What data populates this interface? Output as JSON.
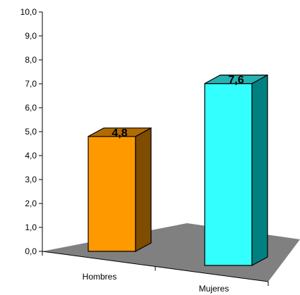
{
  "chart_data": {
    "type": "bar",
    "categories": [
      "Hombres",
      "Mujeres"
    ],
    "values": [
      4.8,
      7.6
    ],
    "data_labels": [
      "4,8",
      "7,6"
    ],
    "title": "",
    "xlabel": "",
    "ylabel": "",
    "ylim": [
      0,
      10
    ],
    "y_ticks": [
      "0,0",
      "1,0",
      "2,0",
      "3,0",
      "4,0",
      "5,0",
      "6,0",
      "7,0",
      "8,0",
      "9,0",
      "10,0"
    ],
    "three_d": true,
    "grid": false,
    "legend": "none",
    "colors": {
      "bars": [
        {
          "front": "#FF9900",
          "side": "#7F4C00",
          "top": "#B26B00"
        },
        {
          "front": "#33FFFF",
          "side": "#008080",
          "top": "#24B2B2"
        }
      ],
      "floor": "#808080",
      "axis": "#000000"
    }
  }
}
